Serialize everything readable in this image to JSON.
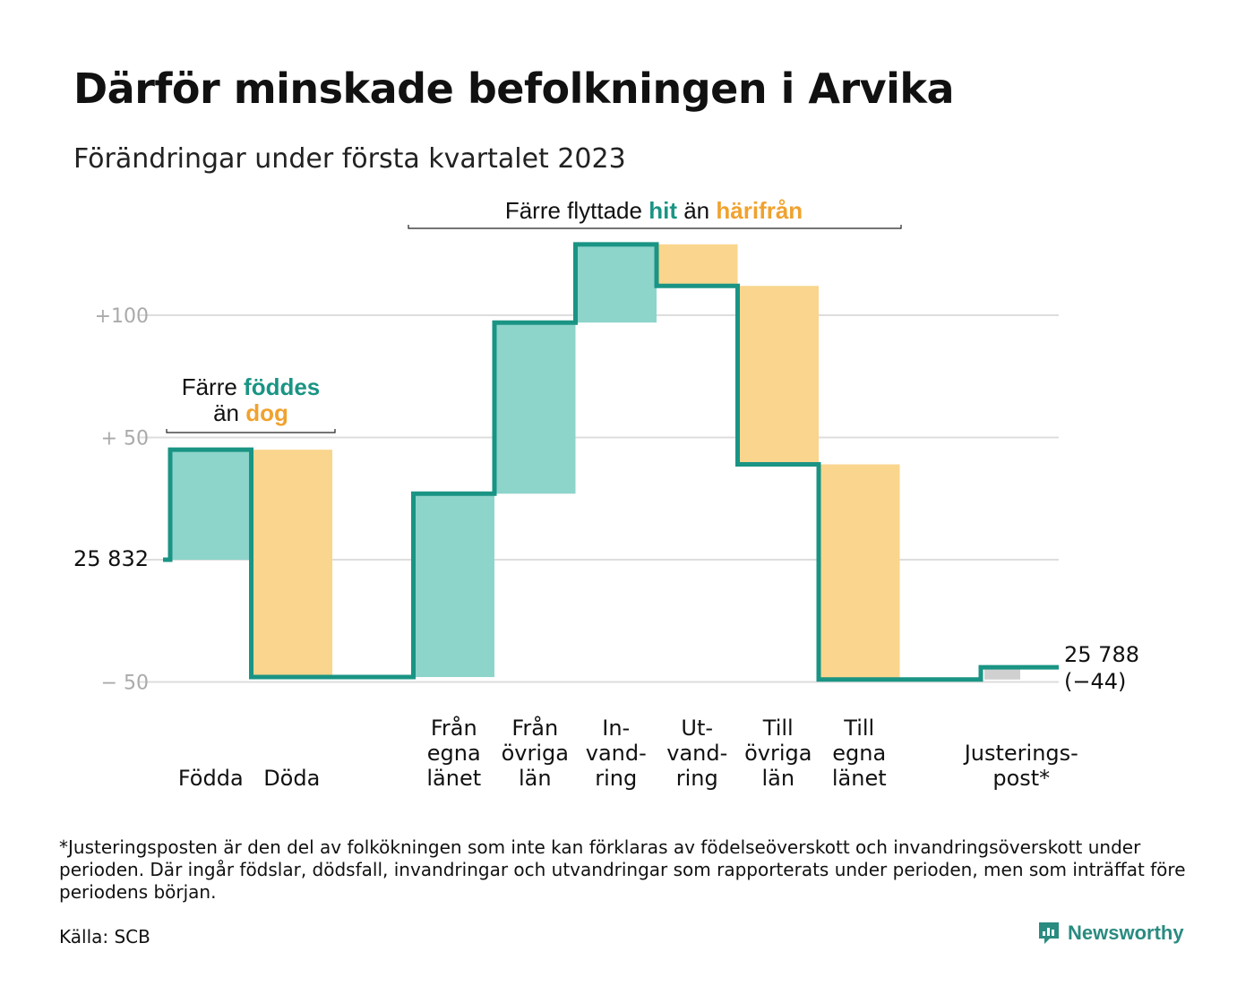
{
  "title": "Därför minskade befolkningen i Arvika",
  "subtitle": "Förändringar under första kvartalet 2023",
  "footnote": "*Justeringsposten är den del av folkökningen som inte kan förklaras av födelseöverskott och invandringsöverskott under perioden. Där ingår födslar, dödsfall, invandringar och utvandringar som rapporterats under perioden, men som inträffat före periodens början.",
  "source": "Källa: SCB",
  "brand": "Newsworthy",
  "annotations": {
    "births_deaths": {
      "part1": "Färre ",
      "highlight1": "föddes",
      "part2": "än ",
      "highlight2": "dog"
    },
    "migration": {
      "part1": "Färre flyttade ",
      "highlight1": "hit",
      "part2": " än ",
      "highlight2": "härifrån"
    }
  },
  "colors": {
    "increase": "#8dd4cb",
    "decrease": "#f9d58d",
    "adjustment": "#d0d0d0",
    "line": "#1a9484",
    "highlight_green": "#1a9484",
    "highlight_orange": "#f0a22e",
    "grid": "#dddddd",
    "axis_text": "#aaaaaa"
  },
  "chart_data": {
    "type": "waterfall",
    "start_value": 25832,
    "start_label": "25 832",
    "end_value": 25788,
    "end_label": "25 788",
    "end_change_label": "(−44)",
    "y_ticks": [
      {
        "value": 100,
        "label": "+100"
      },
      {
        "value": 50,
        "label": "+ 50"
      },
      {
        "value": 0,
        "label": ""
      },
      {
        "value": -50,
        "label": "− 50"
      }
    ],
    "ylim": [
      -55,
      130
    ],
    "steps": [
      {
        "lines": [
          "Födda"
        ],
        "value": 45,
        "kind": "increase"
      },
      {
        "lines": [
          "Döda"
        ],
        "value": -93,
        "kind": "decrease"
      },
      {
        "lines": [],
        "value": 0,
        "kind": "gap"
      },
      {
        "lines": [
          "Från",
          "egna",
          "länet"
        ],
        "value": 75,
        "kind": "increase"
      },
      {
        "lines": [
          "Från",
          "övriga",
          "län"
        ],
        "value": 70,
        "kind": "increase"
      },
      {
        "lines": [
          "In-",
          "vand-",
          "ring"
        ],
        "value": 32,
        "kind": "increase"
      },
      {
        "lines": [
          "Ut-",
          "vand-",
          "ring"
        ],
        "value": -17,
        "kind": "decrease"
      },
      {
        "lines": [
          "Till",
          "övriga",
          "län"
        ],
        "value": -73,
        "kind": "decrease"
      },
      {
        "lines": [
          "Till",
          "egna",
          "länet"
        ],
        "value": -88,
        "kind": "decrease"
      },
      {
        "lines": [],
        "value": 0,
        "kind": "gap"
      },
      {
        "lines": [
          "Justerings-",
          "post*"
        ],
        "value": 5,
        "kind": "adjustment"
      }
    ]
  }
}
